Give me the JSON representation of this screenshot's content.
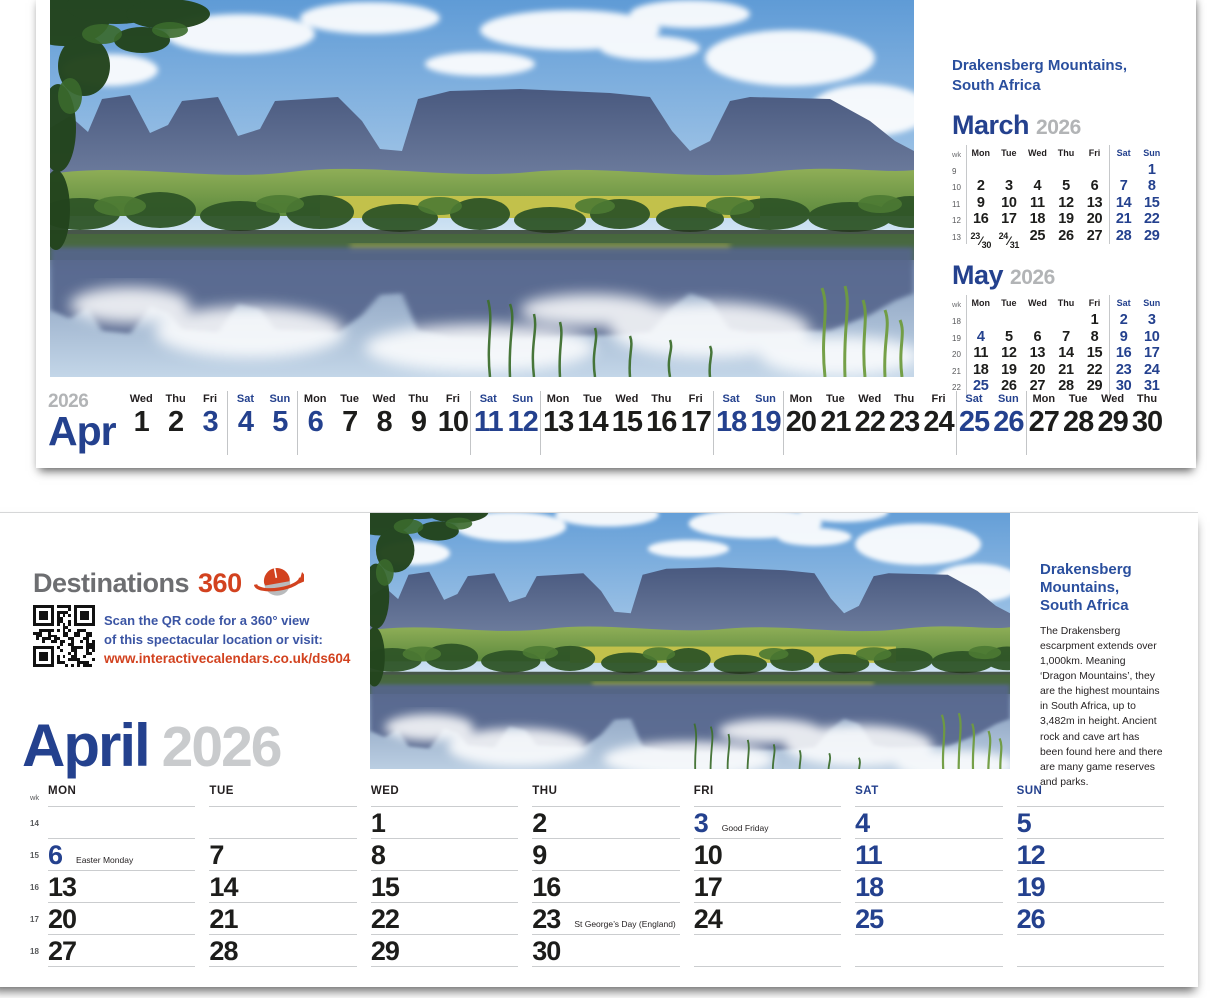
{
  "colors": {
    "blue": "#24418e",
    "title_blue": "#2a4f9e",
    "red": "#d2421f",
    "gray": "#6d6e71",
    "year_gray": "#b2b4b6",
    "big_year_gray": "#c9cbcd"
  },
  "page1": {
    "location_title": {
      "line1": "Drakensberg Mountains,",
      "line2": "South Africa"
    },
    "mini_calendars": [
      {
        "month": "March",
        "year": "2026",
        "wk_label": "wk",
        "day_headers": [
          "Mon",
          "Tue",
          "Wed",
          "Thu",
          "Fri",
          "Sat",
          "Sun"
        ],
        "weeks": [
          {
            "wk": "9",
            "days": [
              "",
              "",
              "",
              "",
              "",
              "",
              "1"
            ]
          },
          {
            "wk": "10",
            "days": [
              "2",
              "3",
              "4",
              "5",
              "6",
              "7",
              "8"
            ]
          },
          {
            "wk": "11",
            "days": [
              "9",
              "10",
              "11",
              "12",
              "13",
              "14",
              "15"
            ]
          },
          {
            "wk": "12",
            "days": [
              "16",
              "17",
              "18",
              "19",
              "20",
              "21",
              "22"
            ]
          },
          {
            "wk": "13",
            "days": [
              "23/30",
              "24/31",
              "25",
              "26",
              "27",
              "28",
              "29"
            ]
          }
        ],
        "holiday_days": []
      },
      {
        "month": "May",
        "year": "2026",
        "wk_label": "wk",
        "day_headers": [
          "Mon",
          "Tue",
          "Wed",
          "Thu",
          "Fri",
          "Sat",
          "Sun"
        ],
        "weeks": [
          {
            "wk": "18",
            "days": [
              "",
              "",
              "",
              "",
              "1",
              "2",
              "3"
            ]
          },
          {
            "wk": "19",
            "days": [
              "4",
              "5",
              "6",
              "7",
              "8",
              "9",
              "10"
            ]
          },
          {
            "wk": "20",
            "days": [
              "11",
              "12",
              "13",
              "14",
              "15",
              "16",
              "17"
            ]
          },
          {
            "wk": "21",
            "days": [
              "18",
              "19",
              "20",
              "21",
              "22",
              "23",
              "24"
            ]
          },
          {
            "wk": "22",
            "days": [
              "25",
              "26",
              "27",
              "28",
              "29",
              "30",
              "31"
            ]
          }
        ],
        "holiday_days": [
          "4",
          "25"
        ]
      }
    ],
    "strip": {
      "year": "2026",
      "month": "Apr",
      "days": [
        {
          "dow": "Wed",
          "d": "1"
        },
        {
          "dow": "Thu",
          "d": "2"
        },
        {
          "dow": "Fri",
          "d": "3",
          "hl": true
        },
        {
          "dow": "Sat",
          "d": "4"
        },
        {
          "dow": "Sun",
          "d": "5"
        },
        {
          "dow": "Mon",
          "d": "6",
          "hl": true
        },
        {
          "dow": "Tue",
          "d": "7"
        },
        {
          "dow": "Wed",
          "d": "8"
        },
        {
          "dow": "Thu",
          "d": "9"
        },
        {
          "dow": "Fri",
          "d": "10"
        },
        {
          "dow": "Sat",
          "d": "11"
        },
        {
          "dow": "Sun",
          "d": "12"
        },
        {
          "dow": "Mon",
          "d": "13"
        },
        {
          "dow": "Tue",
          "d": "14"
        },
        {
          "dow": "Wed",
          "d": "15"
        },
        {
          "dow": "Thu",
          "d": "16"
        },
        {
          "dow": "Fri",
          "d": "17"
        },
        {
          "dow": "Sat",
          "d": "18"
        },
        {
          "dow": "Sun",
          "d": "19"
        },
        {
          "dow": "Mon",
          "d": "20"
        },
        {
          "dow": "Tue",
          "d": "21"
        },
        {
          "dow": "Wed",
          "d": "22"
        },
        {
          "dow": "Thu",
          "d": "23"
        },
        {
          "dow": "Fri",
          "d": "24"
        },
        {
          "dow": "Sat",
          "d": "25"
        },
        {
          "dow": "Sun",
          "d": "26"
        },
        {
          "dow": "Mon",
          "d": "27"
        },
        {
          "dow": "Tue",
          "d": "28"
        },
        {
          "dow": "Wed",
          "d": "29"
        },
        {
          "dow": "Thu",
          "d": "30"
        }
      ]
    }
  },
  "page2": {
    "brand": {
      "name": "Destinations",
      "number": "360"
    },
    "qr": {
      "caption_line1": "Scan the QR code for a 360° view",
      "caption_line2": "of this spectacular location or visit:",
      "url": "www.interactivecalendars.co.uk/ds604"
    },
    "month_title": {
      "month": "April",
      "year": "2026"
    },
    "info": {
      "title_lines": [
        "Drakensberg",
        "Mountains,",
        "South Africa"
      ],
      "body": "The Drakensberg escarpment extends over 1,000km. Meaning ‘Dragon Mountains’, they are the highest mountains in South Africa, up to 3,482m in height. Ancient rock and cave art has been found here and there are many game reserves and parks."
    },
    "grid": {
      "wk_label": "wk",
      "day_headers": [
        "MON",
        "TUE",
        "WED",
        "THU",
        "FRI",
        "SAT",
        "SUN"
      ],
      "weeks": [
        {
          "wk": "14",
          "cells": [
            {
              "d": ""
            },
            {
              "d": ""
            },
            {
              "d": "1"
            },
            {
              "d": "2"
            },
            {
              "d": "3",
              "note": "Good Friday",
              "hl": true
            },
            {
              "d": "4"
            },
            {
              "d": "5"
            }
          ]
        },
        {
          "wk": "15",
          "cells": [
            {
              "d": "6",
              "note": "Easter Monday",
              "hl": true
            },
            {
              "d": "7"
            },
            {
              "d": "8"
            },
            {
              "d": "9"
            },
            {
              "d": "10"
            },
            {
              "d": "11"
            },
            {
              "d": "12"
            }
          ]
        },
        {
          "wk": "16",
          "cells": [
            {
              "d": "13"
            },
            {
              "d": "14"
            },
            {
              "d": "15"
            },
            {
              "d": "16"
            },
            {
              "d": "17"
            },
            {
              "d": "18"
            },
            {
              "d": "19"
            }
          ]
        },
        {
          "wk": "17",
          "cells": [
            {
              "d": "20"
            },
            {
              "d": "21"
            },
            {
              "d": "22"
            },
            {
              "d": "23",
              "note": "St George’s Day (England)"
            },
            {
              "d": "24"
            },
            {
              "d": "25"
            },
            {
              "d": "26"
            }
          ]
        },
        {
          "wk": "18",
          "cells": [
            {
              "d": "27"
            },
            {
              "d": "28"
            },
            {
              "d": "29"
            },
            {
              "d": "30"
            },
            {
              "d": ""
            },
            {
              "d": ""
            },
            {
              "d": ""
            }
          ]
        }
      ]
    }
  }
}
